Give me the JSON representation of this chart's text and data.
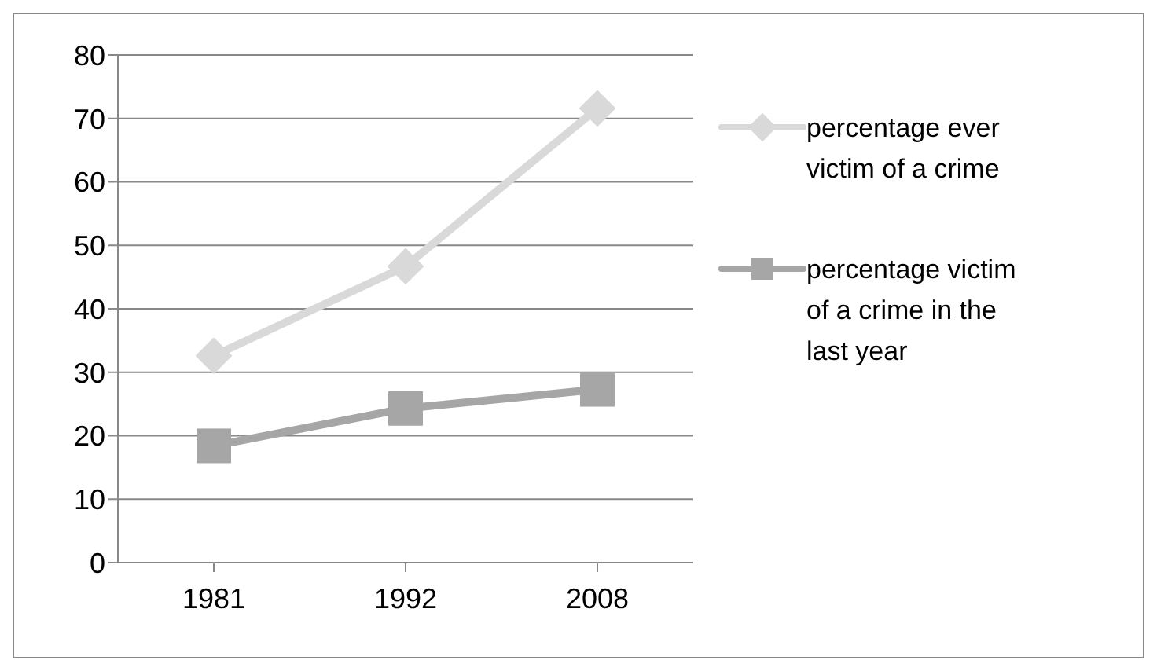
{
  "chart_data": {
    "type": "line",
    "categories": [
      "1981",
      "1992",
      "2008"
    ],
    "series": [
      {
        "name": "percentage ever victim of a crime",
        "color": "#d9d9d9",
        "marker": "diamond",
        "values": [
          32.6,
          46.7,
          71.6
        ]
      },
      {
        "name": "percentage victim of a crime in the last year",
        "color": "#a6a6a6",
        "marker": "square",
        "values": [
          18.4,
          24.3,
          27.3
        ]
      }
    ],
    "ylim": [
      0,
      80
    ],
    "yticks": [
      0,
      10,
      20,
      30,
      40,
      50,
      60,
      70,
      80
    ],
    "grid": "y",
    "legend": "right"
  }
}
